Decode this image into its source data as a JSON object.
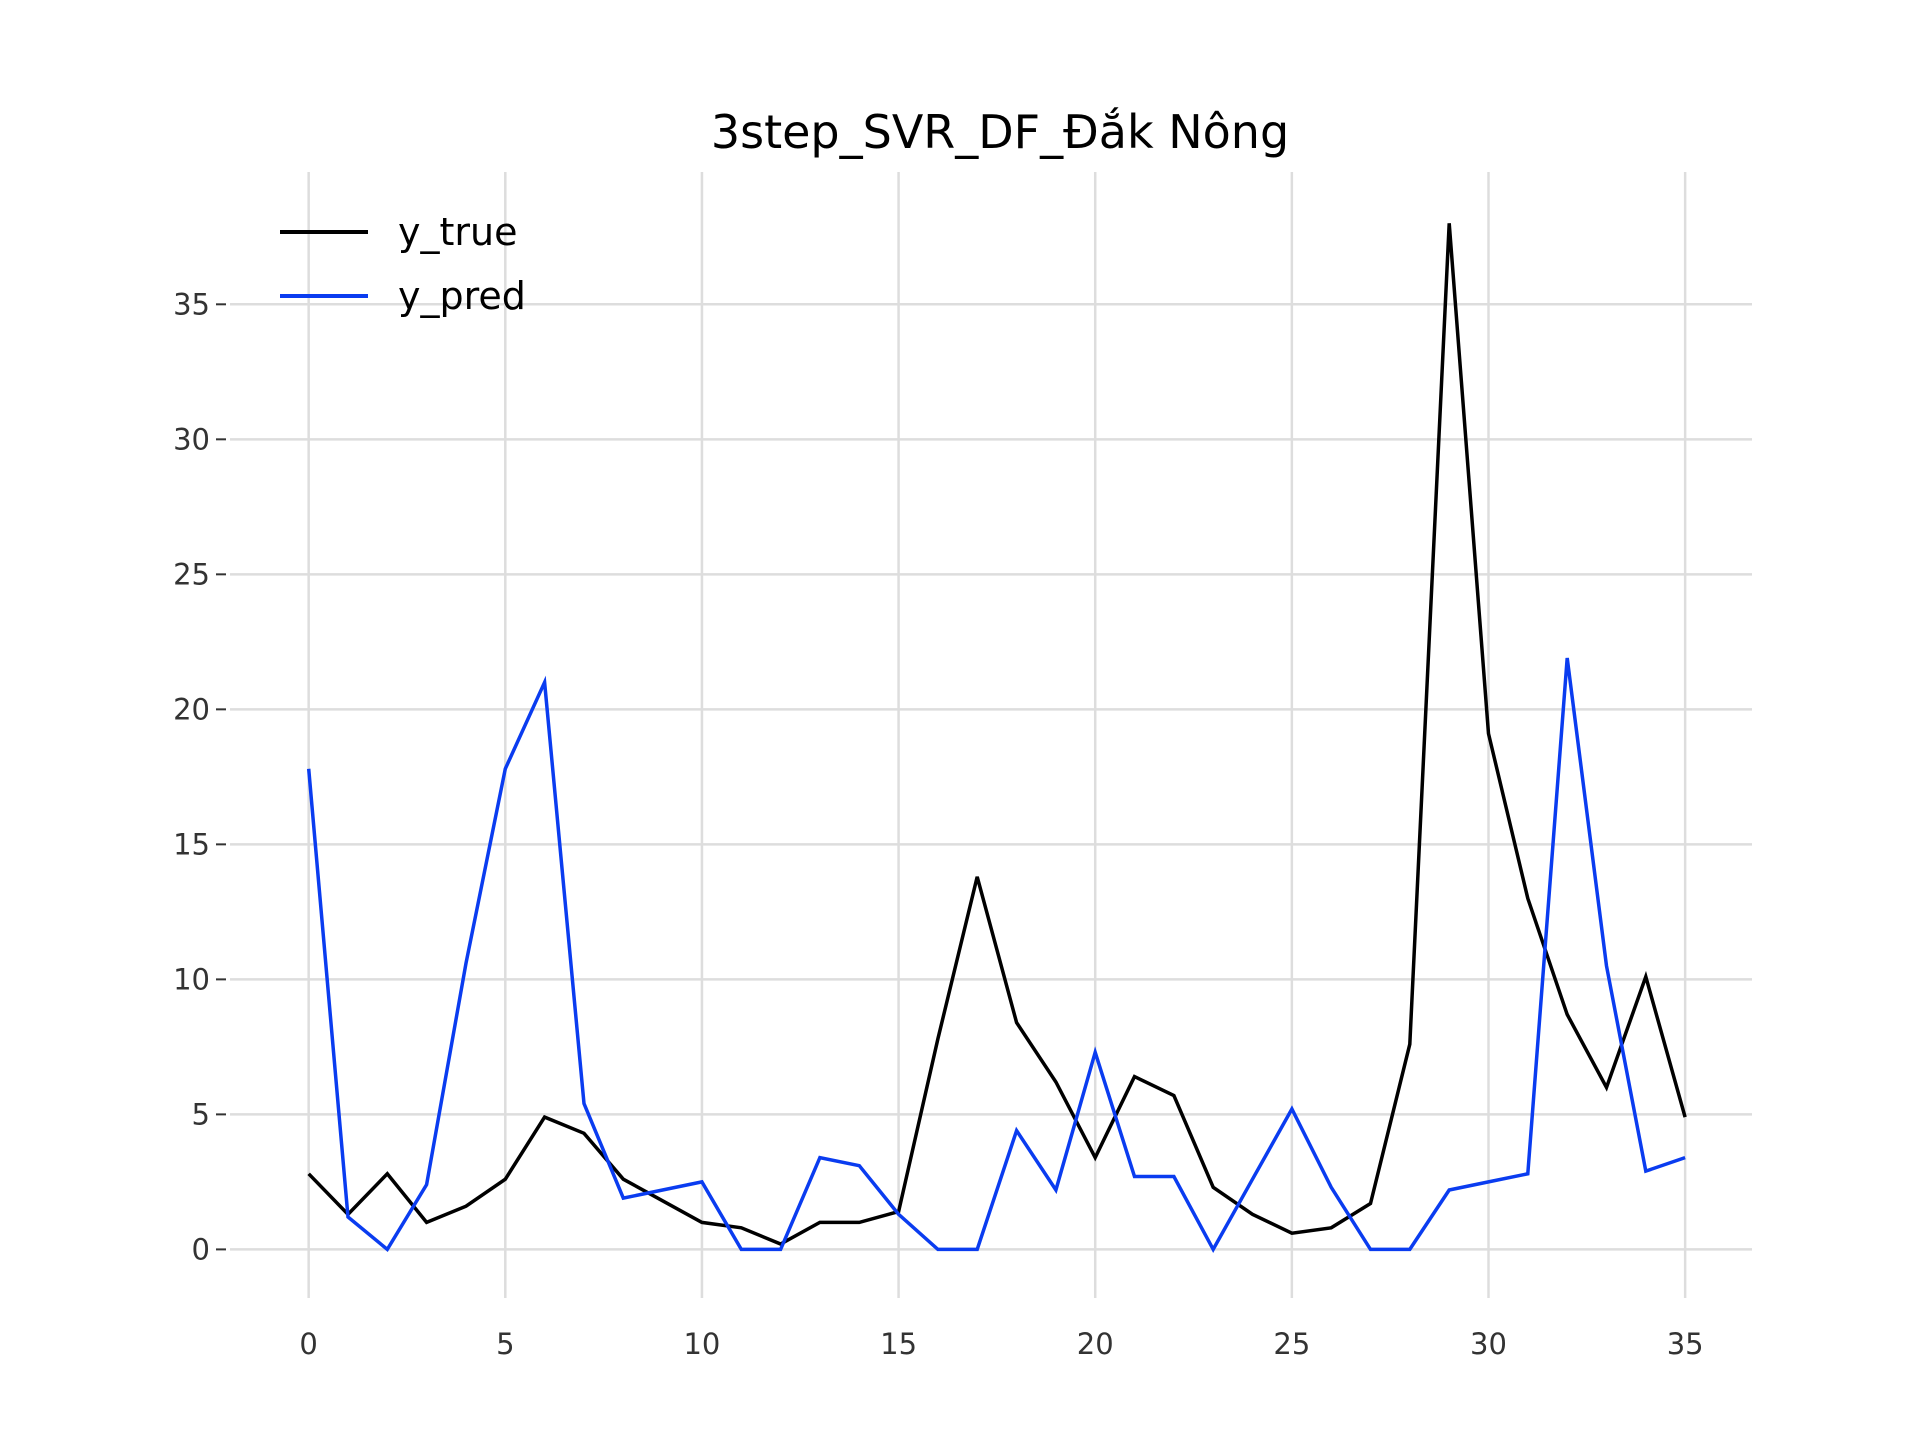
{
  "chart_data": {
    "type": "line",
    "title": "3step_SVR_DF_Đắk Nông",
    "xlabel": "",
    "ylabel": "",
    "x": [
      0,
      1,
      2,
      3,
      4,
      5,
      6,
      7,
      8,
      9,
      10,
      11,
      12,
      13,
      14,
      15,
      16,
      17,
      18,
      19,
      20,
      21,
      22,
      23,
      24,
      25,
      26,
      27,
      28,
      29,
      30,
      31,
      32,
      33,
      34,
      35
    ],
    "xlim": [
      -2,
      36.7
    ],
    "ylim": [
      -1.8,
      39.9
    ],
    "xticks": [
      0,
      5,
      10,
      15,
      20,
      25,
      30,
      35
    ],
    "yticks": [
      0,
      5,
      10,
      15,
      20,
      25,
      30,
      35
    ],
    "grid": true,
    "legend_position": "top-left",
    "series": [
      {
        "name": "y_true",
        "color": "#000000",
        "values": [
          2.8,
          1.3,
          2.8,
          1.0,
          1.6,
          2.6,
          4.9,
          4.3,
          2.6,
          1.8,
          1.0,
          0.8,
          0.2,
          1.0,
          1.0,
          1.4,
          7.8,
          13.8,
          8.4,
          6.2,
          3.4,
          6.4,
          5.7,
          2.3,
          1.3,
          0.6,
          0.8,
          1.7,
          7.6,
          38.0,
          19.1,
          13.0,
          8.7,
          6.0,
          10.1,
          4.9
        ]
      },
      {
        "name": "y_pred",
        "color": "#0a3cf0",
        "values": [
          17.8,
          1.2,
          0.0,
          2.4,
          10.6,
          17.8,
          21.0,
          5.4,
          1.9,
          2.2,
          2.5,
          0.0,
          0.0,
          3.4,
          3.1,
          1.3,
          0.0,
          0.0,
          4.4,
          2.2,
          7.3,
          2.7,
          2.7,
          0.0,
          2.6,
          5.2,
          2.3,
          0.0,
          0.0,
          2.2,
          2.5,
          2.8,
          21.9,
          10.5,
          2.9,
          3.4
        ]
      }
    ]
  }
}
